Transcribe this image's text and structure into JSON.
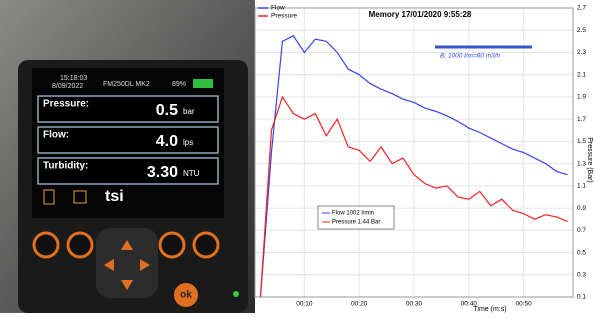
{
  "device": {
    "time": "15:18:03",
    "date": "8/09/2022",
    "model": "FM250DL MK2",
    "battery": "89%",
    "rows": [
      {
        "label": "Pressure:",
        "value": "0.5",
        "unit": "bar"
      },
      {
        "label": "Flow:",
        "value": "4.0",
        "unit": "lps"
      },
      {
        "label": "Turbidity:",
        "value": "3.30",
        "unit": "NTU"
      }
    ],
    "brand": "tsi",
    "button": "ok"
  },
  "chart_data": {
    "type": "line",
    "title": "Memory 17/01/2020 9:55:28",
    "x_label": "Time (m:s)",
    "y_label": "Pressure (Bar)",
    "annotation": "B; 1000 l/m=60 m3/h",
    "readout": [
      "Flow 1002 l/min",
      "Pressure 1.44 Bar"
    ],
    "x": [
      2,
      4,
      6,
      8,
      10,
      12,
      14,
      16,
      18,
      20,
      22,
      24,
      26,
      28,
      30,
      32,
      34,
      36,
      38,
      40,
      42,
      44,
      46,
      48,
      50,
      52,
      54,
      56,
      58
    ],
    "series": [
      {
        "name": "Flow",
        "color": "#3344ee",
        "values": [
          0.1,
          1.4,
          2.4,
          2.45,
          2.3,
          2.42,
          2.4,
          2.3,
          2.15,
          2.1,
          2.02,
          1.97,
          1.93,
          1.88,
          1.85,
          1.8,
          1.77,
          1.73,
          1.68,
          1.62,
          1.58,
          1.53,
          1.48,
          1.43,
          1.4,
          1.35,
          1.3,
          1.23,
          1.2
        ]
      },
      {
        "name": "Pressure",
        "color": "#ee2222",
        "values": [
          0.1,
          1.6,
          1.9,
          1.75,
          1.7,
          1.75,
          1.55,
          1.7,
          1.45,
          1.42,
          1.32,
          1.45,
          1.3,
          1.35,
          1.2,
          1.12,
          1.08,
          1.1,
          1.0,
          0.98,
          1.05,
          0.92,
          0.98,
          0.88,
          0.85,
          0.8,
          0.84,
          0.82,
          0.78
        ]
      }
    ],
    "xlim": [
      1,
      59
    ],
    "ylim": [
      0.1,
      2.7
    ],
    "xticks": [
      {
        "value": 10,
        "label": "00:10"
      },
      {
        "value": 20,
        "label": "00:20"
      },
      {
        "value": 30,
        "label": "00:30"
      },
      {
        "value": 40,
        "label": "00:40"
      },
      {
        "value": 50,
        "label": "00:50"
      }
    ],
    "yticks": [
      0.1,
      0.3,
      0.5,
      0.7,
      0.9,
      1.1,
      1.3,
      1.5,
      1.7,
      1.9,
      2.1,
      2.3,
      2.5,
      2.7
    ],
    "grid": true
  }
}
